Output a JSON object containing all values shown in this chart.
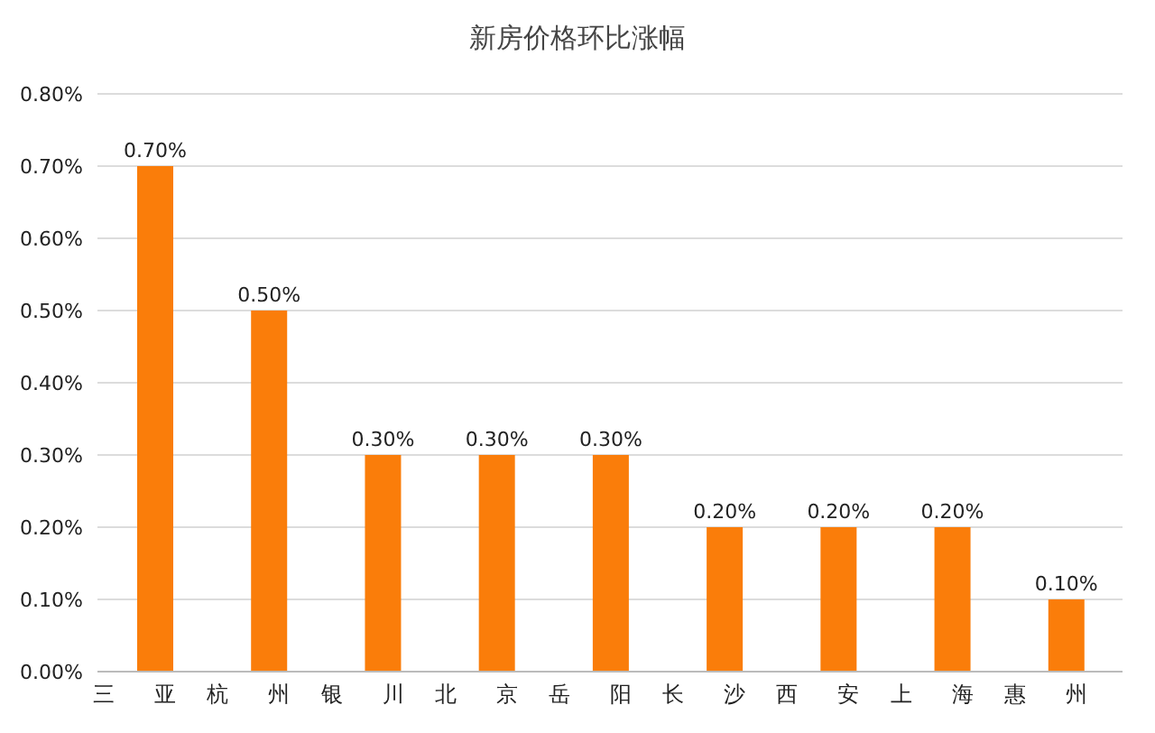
{
  "chart_data": {
    "type": "bar",
    "title": "新房价格环比涨幅",
    "categories": [
      "三亚",
      "杭州",
      "银川",
      "北京",
      "岳阳",
      "长沙",
      "西安",
      "上海",
      "惠州"
    ],
    "values": [
      0.7,
      0.5,
      0.3,
      0.3,
      0.3,
      0.2,
      0.2,
      0.2,
      0.1
    ],
    "value_labels": [
      "0.70%",
      "0.50%",
      "0.30%",
      "0.30%",
      "0.30%",
      "0.20%",
      "0.20%",
      "0.20%",
      "0.10%"
    ],
    "color": "#fa7d0a",
    "ylim": [
      0,
      0.8
    ],
    "yticks": [
      {
        "value": 0,
        "label": "0.00%"
      },
      {
        "value": 0.1,
        "label": "0.10%"
      },
      {
        "value": 0.2,
        "label": "0.20%"
      },
      {
        "value": 0.3,
        "label": "0.30%"
      },
      {
        "value": 0.4,
        "label": "0.40%"
      },
      {
        "value": 0.5,
        "label": "0.50%"
      },
      {
        "value": 0.6,
        "label": "0.60%"
      },
      {
        "value": 0.7,
        "label": "0.70%"
      },
      {
        "value": 0.8,
        "label": "0.80%"
      }
    ],
    "grid": "y",
    "legend": false
  }
}
